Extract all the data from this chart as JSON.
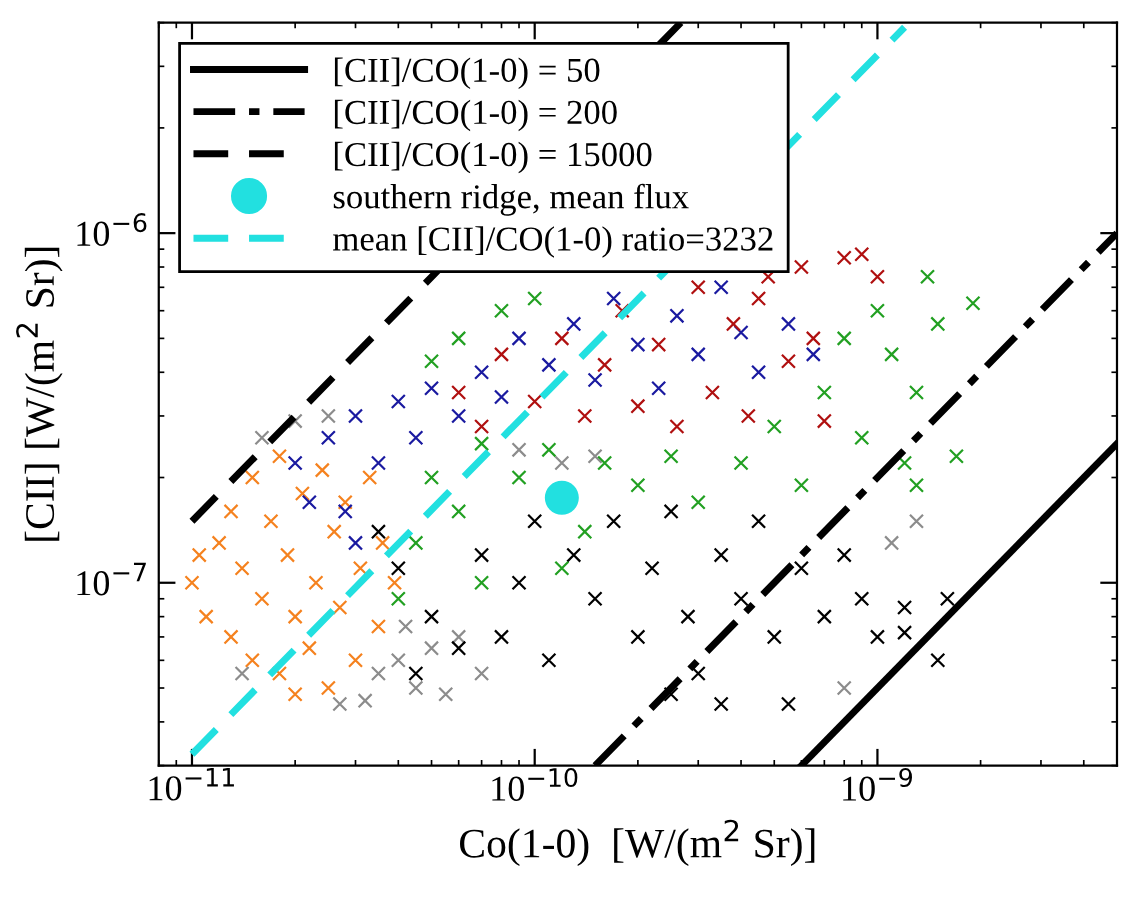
{
  "chart_data": {
    "type": "scatter",
    "xlabel": "Co(1-0)  [W/(m$^{2}$ Sr)]",
    "ylabel": "[CII] [W/(m$^{2}$ Sr)]",
    "log": "xy",
    "xlim": [
      8e-12,
      5e-09
    ],
    "ylim": [
      3e-08,
      4e-06
    ],
    "xticks": [
      {
        "value": 1e-11,
        "label": "10$^{−11}$"
      },
      {
        "value": 1e-10,
        "label": "10$^{−10}$"
      },
      {
        "value": 1e-09,
        "label": "10$^{−9}$"
      }
    ],
    "yticks": [
      {
        "value": 1e-07,
        "label": "10$^{−7}$"
      },
      {
        "value": 1e-06,
        "label": "10$^{−6}$"
      }
    ],
    "grid": false,
    "legend": "top left",
    "marker": "cross",
    "series": [
      {
        "color": "#8c8c8c",
        "x": [
          1.4e-11,
          1.6e-11,
          2e-11,
          2.5e-11,
          3.5e-11,
          4e-11,
          4.5e-11,
          5e-11,
          5.5e-11,
          6e-11,
          3.2e-11,
          4.2e-11,
          7e-11,
          9e-11,
          1.2e-10,
          1.5e-10,
          2.7e-11,
          1.3e-09,
          1.1e-09,
          8e-10
        ],
        "values": [
          5.5e-08,
          2.6e-07,
          2.9e-07,
          3e-07,
          5.5e-08,
          6e-08,
          5e-08,
          6.5e-08,
          4.8e-08,
          7e-08,
          4.6e-08,
          7.5e-08,
          5.5e-08,
          2.4e-07,
          2.2e-07,
          2.3e-07,
          4.5e-08,
          1.5e-07,
          1.3e-07,
          5e-08
        ]
      },
      {
        "color": "#f5821f",
        "x": [
          1e-11,
          1.1e-11,
          1.2e-11,
          1.3e-11,
          1.3e-11,
          1.4e-11,
          1.5e-11,
          1.5e-11,
          1.6e-11,
          1.7e-11,
          1.8e-11,
          1.8e-11,
          1.9e-11,
          2e-11,
          2.1e-11,
          2.2e-11,
          2.3e-11,
          2.4e-11,
          2.5e-11,
          2.6e-11,
          2.7e-11,
          2.8e-11,
          3e-11,
          3.1e-11,
          3.3e-11,
          3.5e-11,
          3.6e-11,
          3.9e-11,
          1.05e-11,
          2e-11
        ],
        "values": [
          1e-07,
          8e-08,
          1.3e-07,
          1.6e-07,
          7e-08,
          1.1e-07,
          2e-07,
          6e-08,
          9e-08,
          1.5e-07,
          5.5e-08,
          2.3e-07,
          1.2e-07,
          8e-08,
          1.8e-07,
          6.5e-08,
          1e-07,
          2.1e-07,
          5e-08,
          1.4e-07,
          8.5e-08,
          1.7e-07,
          6e-08,
          1.1e-07,
          2e-07,
          7.5e-08,
          1.3e-07,
          1e-07,
          1.2e-07,
          4.8e-08
        ]
      },
      {
        "color": "#000000",
        "x": [
          3.5e-11,
          4e-11,
          4.5e-11,
          5e-11,
          6e-11,
          7e-11,
          8e-11,
          9e-11,
          1e-10,
          1.1e-10,
          1.3e-10,
          1.5e-10,
          1.7e-10,
          2e-10,
          2.2e-10,
          2.5e-10,
          2.8e-10,
          3e-10,
          3.5e-10,
          4e-10,
          4.5e-10,
          5e-10,
          5.5e-10,
          6e-10,
          7e-10,
          8e-10,
          9e-10,
          1e-09,
          1.2e-09,
          1.2e-09,
          1.6e-09,
          1.5e-09,
          3.5e-10,
          2.5e-10
        ],
        "values": [
          1.4e-07,
          1.1e-07,
          5.5e-08,
          8e-08,
          6.5e-08,
          1.2e-07,
          7e-08,
          1e-07,
          1.5e-07,
          6e-08,
          1.2e-07,
          9e-08,
          1.5e-07,
          7e-08,
          1.1e-07,
          1.6e-07,
          8e-08,
          5.5e-08,
          1.2e-07,
          9e-08,
          1.5e-07,
          7e-08,
          4.5e-08,
          1.1e-07,
          8e-08,
          1.2e-07,
          9e-08,
          7e-08,
          8.5e-08,
          7.2e-08,
          9e-08,
          6e-08,
          4.5e-08,
          4.8e-08
        ]
      },
      {
        "color": "#22a022",
        "x": [
          4e-11,
          4.5e-11,
          5e-11,
          5e-11,
          6e-11,
          6e-11,
          7e-11,
          7e-11,
          8e-11,
          9e-11,
          1e-10,
          1.1e-10,
          1.2e-10,
          1.4e-10,
          1.6e-10,
          2e-10,
          2.5e-10,
          3e-10,
          4e-10,
          5e-10,
          6e-10,
          7e-10,
          8e-10,
          9e-10,
          1e-09,
          1.1e-09,
          1.2e-09,
          1.3e-09,
          1.5e-09,
          1.7e-09,
          1.9e-09,
          1.4e-09,
          1.3e-09
        ],
        "values": [
          9e-08,
          1.3e-07,
          2e-07,
          4.3e-07,
          1.6e-07,
          5e-07,
          1e-07,
          2.5e-07,
          6e-07,
          2e-07,
          6.5e-07,
          2.4e-07,
          1.1e-07,
          1.4e-07,
          2.2e-07,
          1.9e-07,
          2.3e-07,
          1.7e-07,
          2.2e-07,
          2.8e-07,
          1.9e-07,
          3.5e-07,
          5e-07,
          2.6e-07,
          6e-07,
          4.5e-07,
          2.2e-07,
          3.5e-07,
          5.5e-07,
          2.3e-07,
          6.3e-07,
          7.5e-07,
          1.9e-07
        ]
      },
      {
        "color": "#1a1aa0",
        "x": [
          2e-11,
          2.5e-11,
          2.8e-11,
          3e-11,
          3.5e-11,
          4e-11,
          4.5e-11,
          5e-11,
          6e-11,
          7e-11,
          8e-11,
          9e-11,
          1.1e-10,
          1.3e-10,
          1.5e-10,
          1.7e-10,
          2e-10,
          2.3e-10,
          2.6e-10,
          3e-10,
          3.5e-10,
          4e-10,
          4.5e-10,
          5.5e-10,
          6.5e-10,
          2.2e-11,
          3e-11
        ],
        "values": [
          2.2e-07,
          2.6e-07,
          1.6e-07,
          3e-07,
          2.2e-07,
          3.3e-07,
          2.6e-07,
          3.6e-07,
          3e-07,
          4e-07,
          3.4e-07,
          5e-07,
          4.2e-07,
          5.5e-07,
          3.8e-07,
          6.5e-07,
          4.8e-07,
          3.6e-07,
          5.8e-07,
          4.5e-07,
          7e-07,
          5.2e-07,
          4e-07,
          5.5e-07,
          4.5e-07,
          1.7e-07,
          1.3e-07
        ]
      },
      {
        "color": "#b01010",
        "x": [
          6e-11,
          7e-11,
          8e-11,
          1e-10,
          1.2e-10,
          1.4e-10,
          1.6e-10,
          1.8e-10,
          2e-10,
          2.3e-10,
          2.6e-10,
          3e-10,
          3.3e-10,
          3.8e-10,
          4.2e-10,
          4.8e-10,
          5.5e-10,
          6e-10,
          6.5e-10,
          7e-10,
          8e-10,
          9e-10,
          1e-09,
          4.5e-10
        ],
        "values": [
          3.5e-07,
          2.8e-07,
          4.5e-07,
          3.3e-07,
          5e-07,
          3e-07,
          4.2e-07,
          6e-07,
          3.2e-07,
          4.8e-07,
          2.8e-07,
          7e-07,
          3.5e-07,
          5.5e-07,
          3e-07,
          7.5e-07,
          4.3e-07,
          8e-07,
          5e-07,
          2.9e-07,
          8.5e-07,
          8.7e-07,
          7.5e-07,
          6.5e-07
        ]
      },
      {
        "type": "line",
        "name": "[CII]/CO(1-0) = 50",
        "color": "#000000",
        "line_style": "solid",
        "marker": "none",
        "x": [
          6e-10,
          5e-09
        ],
        "values": [
          3e-08,
          2.5e-07
        ]
      },
      {
        "type": "line",
        "name": "[CII]/CO(1-0) = 200",
        "color": "#000000",
        "line_style": "dashdot",
        "marker": "none",
        "x": [
          1.5e-10,
          5e-09
        ],
        "values": [
          3e-08,
          1e-06
        ]
      },
      {
        "type": "line",
        "name": "[CII]/CO(1-0) = 15000",
        "color": "#000000",
        "line_style": "dashed",
        "marker": "none",
        "x": [
          1e-11,
          2.67e-10
        ],
        "values": [
          1.5e-07,
          4e-06
        ]
      },
      {
        "type": "scatter",
        "name": "southern ridge, mean flux",
        "color": "#22e0e0",
        "marker": "circle",
        "x": [
          1.2e-10
        ],
        "values": [
          1.75e-07
        ]
      },
      {
        "type": "line",
        "name": "mean [CII]/CO(1-0) ratio=3232",
        "color": "#22e0e0",
        "line_style": "dashed",
        "marker": "none",
        "x": [
          1e-11,
          1.2e-09
        ],
        "values": [
          3.232e-08,
          3.88e-06
        ]
      }
    ]
  }
}
